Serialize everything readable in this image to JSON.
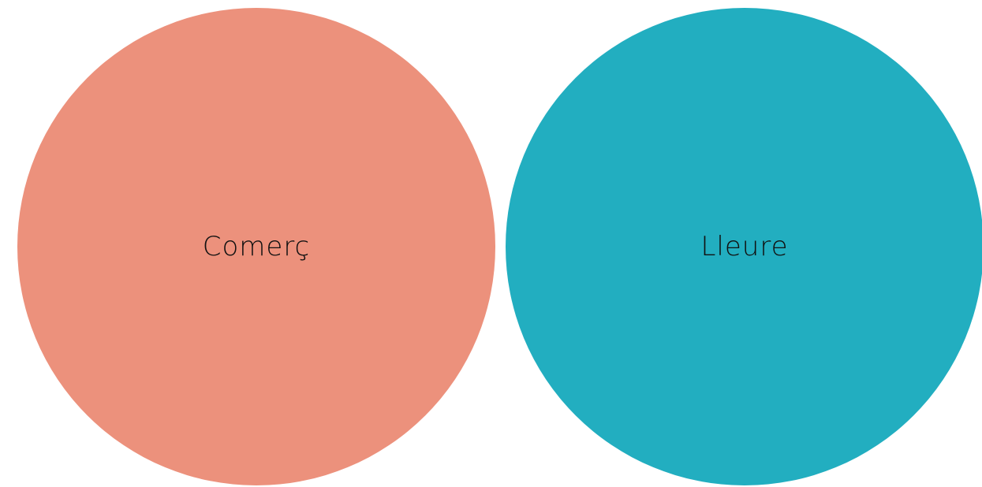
{
  "buttons": [
    {
      "label": "Comerç"
    },
    {
      "label": "Lleure"
    }
  ]
}
